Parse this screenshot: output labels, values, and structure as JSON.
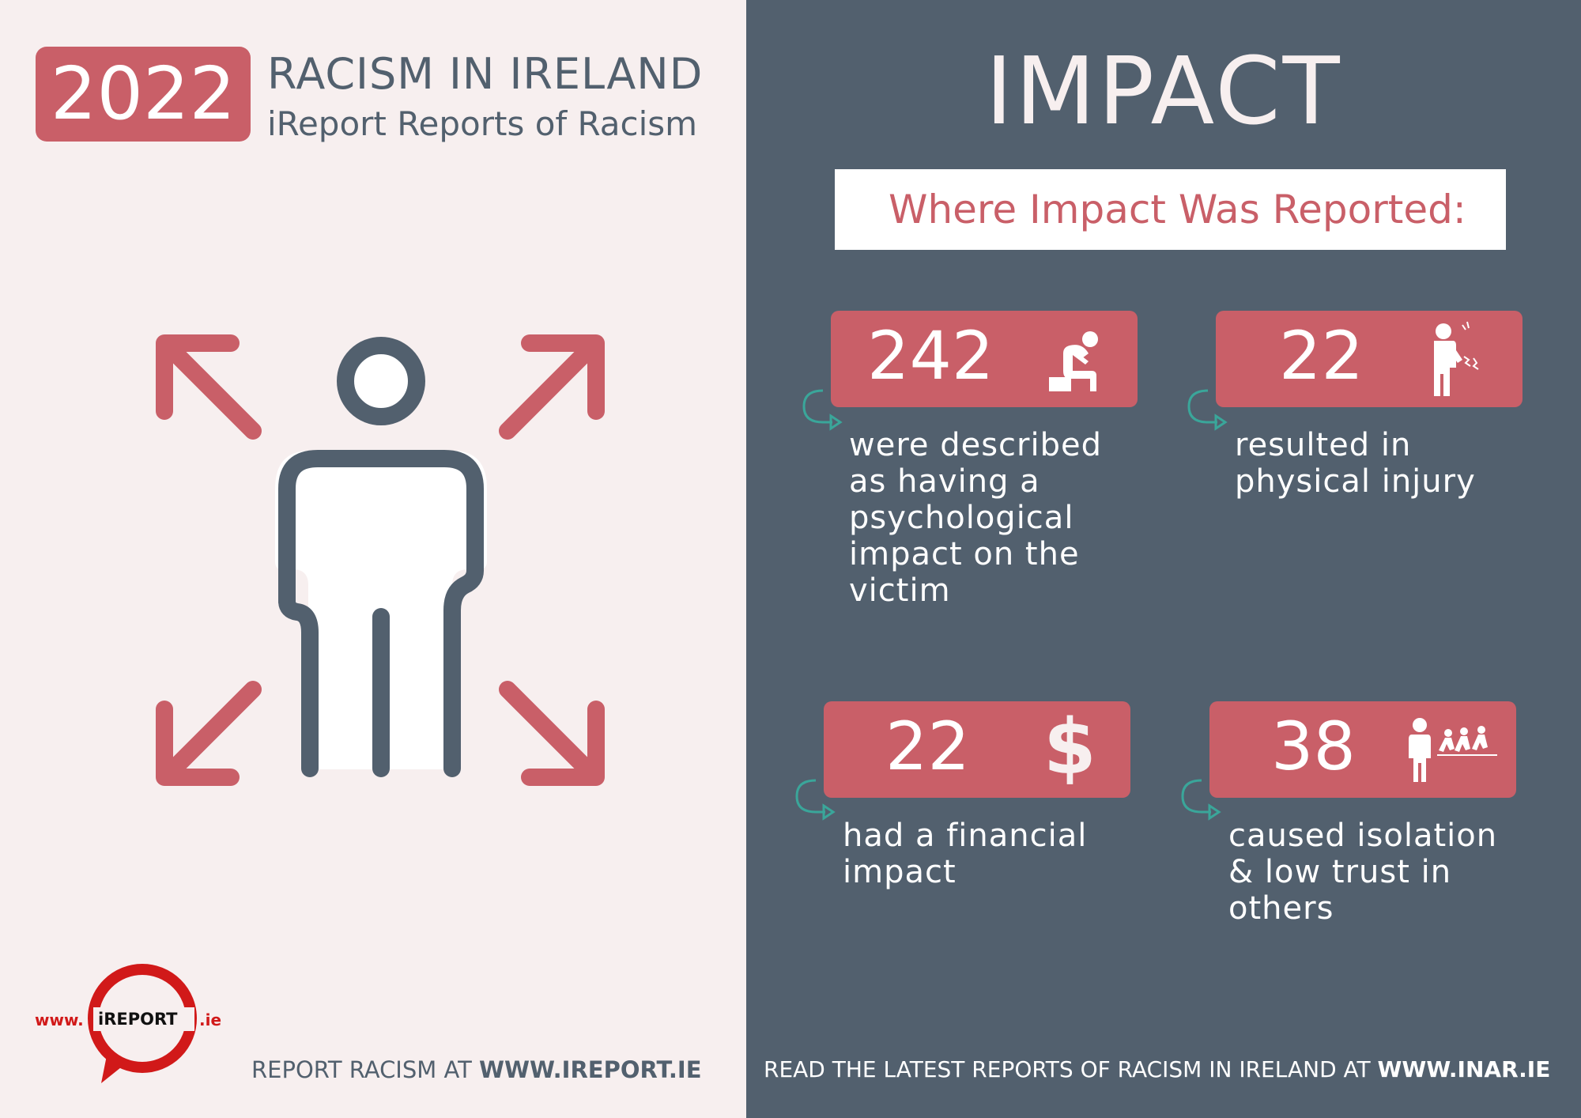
{
  "header": {
    "year": "2022",
    "title": "RACISM IN IRELAND",
    "subtitle": "iReport Reports of Racism"
  },
  "logo": {
    "prefix": "www.",
    "name": "iREPORT",
    "suffix": ".ie"
  },
  "footer": {
    "left_text": "REPORT RACISM AT ",
    "left_link": "WWW.IREPORT.IE",
    "right_text": "READ THE LATEST REPORTS OF RACISM IN IRELAND AT ",
    "right_link": "WWW.INAR.IE"
  },
  "impact": {
    "title": "IMPACT",
    "where_label": "Where Impact Was Reported:",
    "stats": [
      {
        "value": "242",
        "icon": "distressed-person-icon",
        "description": "were described as having a psychological impact on the victim"
      },
      {
        "value": "22",
        "icon": "injured-person-icon",
        "description": "resulted in physical injury"
      },
      {
        "value": "22",
        "icon": "dollar-icon",
        "description": "had a financial impact"
      },
      {
        "value": "38",
        "icon": "isolated-person-icon",
        "description": "caused isolation & low trust in others"
      }
    ]
  },
  "colors": {
    "accent": "#c95f68",
    "dark": "#52606e",
    "light": "#f7efef"
  }
}
